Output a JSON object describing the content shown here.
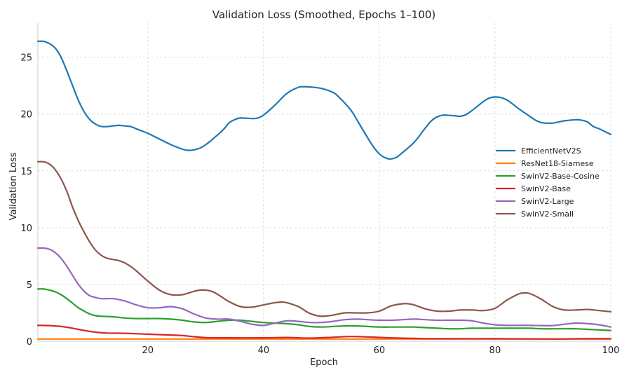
{
  "chart_data": {
    "type": "line",
    "title": "Validation Loss (Smoothed, Epochs 1–100)",
    "xlabel": "Epoch",
    "ylabel": "Validation Loss",
    "xlim": [
      1,
      100
    ],
    "ylim": [
      0,
      28
    ],
    "xticks": [
      20,
      40,
      60,
      80,
      100
    ],
    "yticks": [
      0,
      5,
      10,
      15,
      20,
      25
    ],
    "grid": true,
    "legend_position": "center-right",
    "series": [
      {
        "name": "EfficientNetV2S",
        "color": "#1f77b4",
        "points": [
          [
            1,
            26.4
          ],
          [
            2,
            26.4
          ],
          [
            3,
            26.2
          ],
          [
            4,
            25.8
          ],
          [
            5,
            25.0
          ],
          [
            6,
            23.8
          ],
          [
            7,
            22.5
          ],
          [
            8,
            21.2
          ],
          [
            9,
            20.2
          ],
          [
            10,
            19.5
          ],
          [
            11,
            19.1
          ],
          [
            12,
            18.9
          ],
          [
            13,
            18.9
          ],
          [
            14,
            18.95
          ],
          [
            15,
            19.0
          ],
          [
            16,
            18.95
          ],
          [
            17,
            18.9
          ],
          [
            18,
            18.7
          ],
          [
            19,
            18.5
          ],
          [
            20,
            18.3
          ],
          [
            22,
            17.8
          ],
          [
            24,
            17.3
          ],
          [
            26,
            16.9
          ],
          [
            27,
            16.8
          ],
          [
            28,
            16.85
          ],
          [
            29,
            17.0
          ],
          [
            30,
            17.3
          ],
          [
            31,
            17.7
          ],
          [
            33,
            18.6
          ],
          [
            34,
            19.2
          ],
          [
            35,
            19.5
          ],
          [
            36,
            19.65
          ],
          [
            38,
            19.6
          ],
          [
            39,
            19.65
          ],
          [
            40,
            19.9
          ],
          [
            42,
            20.8
          ],
          [
            44,
            21.8
          ],
          [
            46,
            22.35
          ],
          [
            47,
            22.4
          ],
          [
            48,
            22.38
          ],
          [
            50,
            22.25
          ],
          [
            52,
            21.9
          ],
          [
            53,
            21.5
          ],
          [
            55,
            20.4
          ],
          [
            56,
            19.6
          ],
          [
            58,
            17.9
          ],
          [
            59,
            17.1
          ],
          [
            60,
            16.5
          ],
          [
            61,
            16.15
          ],
          [
            62,
            16.05
          ],
          [
            63,
            16.2
          ],
          [
            64,
            16.6
          ],
          [
            66,
            17.5
          ],
          [
            68,
            18.8
          ],
          [
            69,
            19.4
          ],
          [
            70,
            19.75
          ],
          [
            71,
            19.9
          ],
          [
            73,
            19.85
          ],
          [
            74,
            19.8
          ],
          [
            75,
            19.95
          ],
          [
            76,
            20.3
          ],
          [
            78,
            21.1
          ],
          [
            79,
            21.4
          ],
          [
            80,
            21.5
          ],
          [
            81,
            21.45
          ],
          [
            82,
            21.25
          ],
          [
            83,
            20.9
          ],
          [
            84,
            20.5
          ],
          [
            86,
            19.8
          ],
          [
            87,
            19.45
          ],
          [
            88,
            19.25
          ],
          [
            89,
            19.2
          ],
          [
            90,
            19.2
          ],
          [
            91,
            19.3
          ],
          [
            92,
            19.4
          ],
          [
            94,
            19.5
          ],
          [
            95,
            19.45
          ],
          [
            96,
            19.3
          ],
          [
            97,
            18.9
          ],
          [
            98,
            18.7
          ],
          [
            99,
            18.45
          ],
          [
            100,
            18.2
          ]
        ]
      },
      {
        "name": "ResNet18-Siamese",
        "color": "#ff7f0e",
        "points": [
          [
            1,
            0.2
          ],
          [
            25,
            0.2
          ],
          [
            50,
            0.2
          ],
          [
            75,
            0.2
          ],
          [
            100,
            0.2
          ]
        ]
      },
      {
        "name": "SwinV2-Base-Cosine",
        "color": "#2ca02c",
        "points": [
          [
            1,
            4.6
          ],
          [
            2,
            4.6
          ],
          [
            3,
            4.5
          ],
          [
            4,
            4.35
          ],
          [
            5,
            4.1
          ],
          [
            6,
            3.75
          ],
          [
            7,
            3.35
          ],
          [
            8,
            2.95
          ],
          [
            9,
            2.65
          ],
          [
            10,
            2.4
          ],
          [
            11,
            2.25
          ],
          [
            12,
            2.2
          ],
          [
            14,
            2.15
          ],
          [
            16,
            2.05
          ],
          [
            18,
            2.0
          ],
          [
            20,
            2.0
          ],
          [
            22,
            2.0
          ],
          [
            24,
            1.95
          ],
          [
            26,
            1.85
          ],
          [
            28,
            1.7
          ],
          [
            30,
            1.65
          ],
          [
            32,
            1.75
          ],
          [
            34,
            1.85
          ],
          [
            36,
            1.85
          ],
          [
            38,
            1.75
          ],
          [
            40,
            1.65
          ],
          [
            42,
            1.6
          ],
          [
            44,
            1.55
          ],
          [
            46,
            1.45
          ],
          [
            48,
            1.3
          ],
          [
            50,
            1.25
          ],
          [
            52,
            1.3
          ],
          [
            54,
            1.35
          ],
          [
            56,
            1.35
          ],
          [
            58,
            1.3
          ],
          [
            60,
            1.25
          ],
          [
            62,
            1.25
          ],
          [
            64,
            1.25
          ],
          [
            66,
            1.25
          ],
          [
            68,
            1.2
          ],
          [
            70,
            1.15
          ],
          [
            72,
            1.1
          ],
          [
            74,
            1.1
          ],
          [
            76,
            1.15
          ],
          [
            78,
            1.15
          ],
          [
            80,
            1.15
          ],
          [
            82,
            1.15
          ],
          [
            84,
            1.15
          ],
          [
            86,
            1.15
          ],
          [
            88,
            1.1
          ],
          [
            90,
            1.1
          ],
          [
            92,
            1.1
          ],
          [
            94,
            1.1
          ],
          [
            96,
            1.05
          ],
          [
            98,
            1.0
          ],
          [
            100,
            0.95
          ]
        ]
      },
      {
        "name": "SwinV2-Base",
        "color": "#d62728",
        "points": [
          [
            1,
            1.4
          ],
          [
            3,
            1.38
          ],
          [
            5,
            1.3
          ],
          [
            7,
            1.15
          ],
          [
            9,
            0.95
          ],
          [
            11,
            0.8
          ],
          [
            13,
            0.72
          ],
          [
            16,
            0.7
          ],
          [
            20,
            0.62
          ],
          [
            24,
            0.55
          ],
          [
            26,
            0.5
          ],
          [
            28,
            0.4
          ],
          [
            30,
            0.32
          ],
          [
            34,
            0.3
          ],
          [
            40,
            0.3
          ],
          [
            44,
            0.33
          ],
          [
            48,
            0.28
          ],
          [
            52,
            0.35
          ],
          [
            55,
            0.42
          ],
          [
            58,
            0.38
          ],
          [
            62,
            0.3
          ],
          [
            66,
            0.25
          ],
          [
            70,
            0.22
          ],
          [
            80,
            0.22
          ],
          [
            90,
            0.2
          ],
          [
            95,
            0.22
          ],
          [
            100,
            0.22
          ]
        ]
      },
      {
        "name": "SwinV2-Large",
        "color": "#9467bd",
        "points": [
          [
            1,
            8.2
          ],
          [
            2,
            8.2
          ],
          [
            3,
            8.1
          ],
          [
            4,
            7.8
          ],
          [
            5,
            7.3
          ],
          [
            6,
            6.6
          ],
          [
            7,
            5.8
          ],
          [
            8,
            5.0
          ],
          [
            9,
            4.4
          ],
          [
            10,
            4.0
          ],
          [
            11,
            3.85
          ],
          [
            12,
            3.75
          ],
          [
            14,
            3.75
          ],
          [
            16,
            3.55
          ],
          [
            18,
            3.2
          ],
          [
            20,
            2.95
          ],
          [
            22,
            2.95
          ],
          [
            24,
            3.05
          ],
          [
            26,
            2.85
          ],
          [
            28,
            2.4
          ],
          [
            30,
            2.05
          ],
          [
            32,
            1.95
          ],
          [
            34,
            1.95
          ],
          [
            36,
            1.75
          ],
          [
            38,
            1.5
          ],
          [
            40,
            1.4
          ],
          [
            42,
            1.6
          ],
          [
            44,
            1.8
          ],
          [
            46,
            1.75
          ],
          [
            48,
            1.65
          ],
          [
            50,
            1.65
          ],
          [
            52,
            1.75
          ],
          [
            54,
            1.9
          ],
          [
            56,
            1.95
          ],
          [
            58,
            1.9
          ],
          [
            60,
            1.85
          ],
          [
            62,
            1.85
          ],
          [
            64,
            1.9
          ],
          [
            66,
            1.95
          ],
          [
            68,
            1.9
          ],
          [
            70,
            1.85
          ],
          [
            72,
            1.85
          ],
          [
            74,
            1.85
          ],
          [
            76,
            1.8
          ],
          [
            78,
            1.6
          ],
          [
            80,
            1.45
          ],
          [
            82,
            1.4
          ],
          [
            84,
            1.4
          ],
          [
            86,
            1.4
          ],
          [
            88,
            1.38
          ],
          [
            90,
            1.38
          ],
          [
            92,
            1.5
          ],
          [
            94,
            1.6
          ],
          [
            96,
            1.55
          ],
          [
            98,
            1.45
          ],
          [
            100,
            1.25
          ]
        ]
      },
      {
        "name": "SwinV2-Small",
        "color": "#8c564b",
        "points": [
          [
            1,
            15.8
          ],
          [
            2,
            15.8
          ],
          [
            3,
            15.6
          ],
          [
            4,
            15.1
          ],
          [
            5,
            14.3
          ],
          [
            6,
            13.2
          ],
          [
            7,
            11.8
          ],
          [
            8,
            10.6
          ],
          [
            9,
            9.6
          ],
          [
            10,
            8.7
          ],
          [
            11,
            8.0
          ],
          [
            12,
            7.55
          ],
          [
            13,
            7.3
          ],
          [
            14,
            7.2
          ],
          [
            15,
            7.1
          ],
          [
            16,
            6.9
          ],
          [
            17,
            6.6
          ],
          [
            18,
            6.2
          ],
          [
            20,
            5.3
          ],
          [
            22,
            4.5
          ],
          [
            24,
            4.1
          ],
          [
            26,
            4.1
          ],
          [
            28,
            4.4
          ],
          [
            29,
            4.5
          ],
          [
            30,
            4.5
          ],
          [
            31,
            4.4
          ],
          [
            32,
            4.15
          ],
          [
            34,
            3.5
          ],
          [
            36,
            3.05
          ],
          [
            38,
            3.0
          ],
          [
            40,
            3.2
          ],
          [
            42,
            3.4
          ],
          [
            43,
            3.45
          ],
          [
            44,
            3.4
          ],
          [
            46,
            3.05
          ],
          [
            48,
            2.45
          ],
          [
            50,
            2.2
          ],
          [
            52,
            2.3
          ],
          [
            54,
            2.5
          ],
          [
            56,
            2.5
          ],
          [
            58,
            2.5
          ],
          [
            60,
            2.65
          ],
          [
            62,
            3.1
          ],
          [
            64,
            3.3
          ],
          [
            65,
            3.3
          ],
          [
            66,
            3.2
          ],
          [
            68,
            2.85
          ],
          [
            70,
            2.65
          ],
          [
            72,
            2.65
          ],
          [
            74,
            2.75
          ],
          [
            76,
            2.75
          ],
          [
            78,
            2.7
          ],
          [
            80,
            2.9
          ],
          [
            82,
            3.6
          ],
          [
            84,
            4.15
          ],
          [
            85,
            4.25
          ],
          [
            86,
            4.2
          ],
          [
            88,
            3.7
          ],
          [
            90,
            3.05
          ],
          [
            92,
            2.75
          ],
          [
            94,
            2.75
          ],
          [
            96,
            2.8
          ],
          [
            98,
            2.7
          ],
          [
            100,
            2.6
          ]
        ]
      }
    ]
  }
}
